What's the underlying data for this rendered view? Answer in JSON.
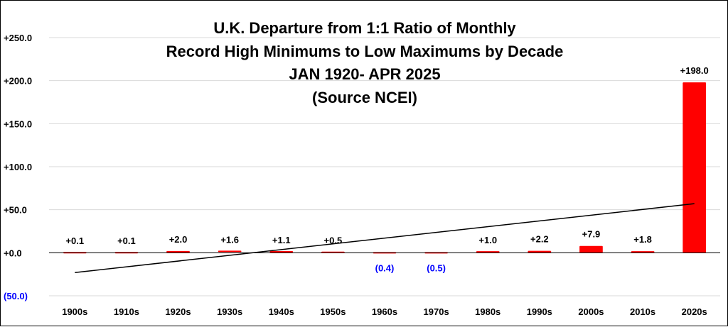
{
  "chart_data": {
    "type": "bar",
    "title_lines": [
      "U.K. Departure from 1:1 Ratio of Monthly",
      "Record High Minimums to Low Maximums by Decade",
      "JAN 1920- APR 2025",
      "(Source NCEI)"
    ],
    "categories": [
      "1900s",
      "1910s",
      "1920s",
      "1930s",
      "1940s",
      "1950s",
      "1960s",
      "1970s",
      "1980s",
      "1990s",
      "2000s",
      "2010s",
      "2020s"
    ],
    "values": [
      0.1,
      0.1,
      2.0,
      1.6,
      1.1,
      0.5,
      -0.4,
      -0.5,
      1.0,
      2.2,
      7.9,
      1.8,
      198.0
    ],
    "data_labels": [
      "+0.1",
      "+0.1",
      "+2.0",
      "+1.6",
      "+1.1",
      "+0.5",
      "(0.4)",
      "(0.5)",
      "+1.0",
      "+2.2",
      "+7.9",
      "+1.8",
      "+198.0"
    ],
    "ylim": [
      -50,
      250
    ],
    "yticks": [
      -50,
      0,
      50,
      100,
      150,
      200,
      250
    ],
    "ytick_labels": [
      "(50.0)",
      "+0.0",
      "+50.0",
      "+100.0",
      "+150.0",
      "+200.0",
      "+250.0"
    ],
    "trendline": {
      "start": -23,
      "end": 57
    },
    "grid": true,
    "legend": false,
    "colors": {
      "bar": "#ff0000",
      "negative_text": "#0000ff",
      "positive_text": "#000000",
      "grid": "#d9d9d9",
      "trend": "#000000"
    }
  }
}
